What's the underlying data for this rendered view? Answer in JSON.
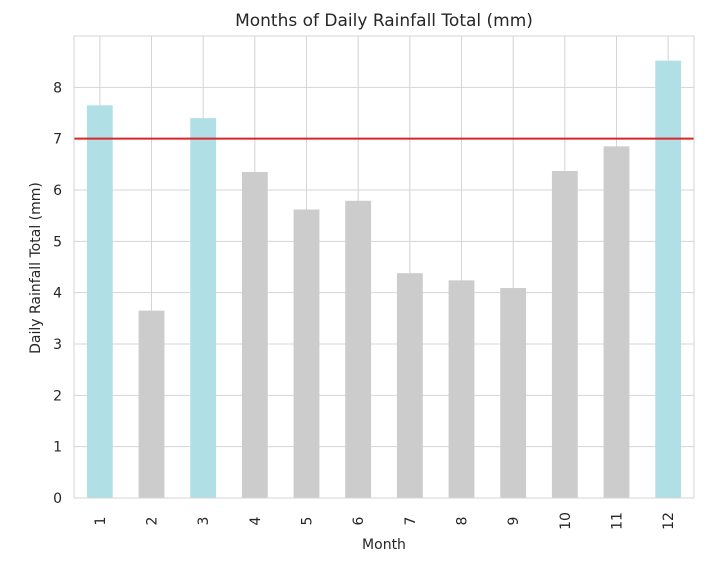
{
  "chart_data": {
    "type": "bar",
    "title": "Months of Daily Rainfall Total (mm)",
    "xlabel": "Month",
    "ylabel": "Daily Rainfall Total (mm)",
    "categories": [
      "1",
      "2",
      "3",
      "4",
      "5",
      "6",
      "7",
      "8",
      "9",
      "10",
      "11",
      "12"
    ],
    "values": [
      7.65,
      3.65,
      7.4,
      6.35,
      5.62,
      5.79,
      4.38,
      4.24,
      4.09,
      6.37,
      6.85,
      8.52
    ],
    "highlighted": [
      true,
      false,
      true,
      false,
      false,
      false,
      false,
      false,
      false,
      false,
      false,
      true
    ],
    "threshold": 7.0,
    "ylim": [
      0,
      9
    ],
    "yticks": [
      "0",
      "1",
      "2",
      "3",
      "4",
      "5",
      "6",
      "7",
      "8"
    ],
    "grid": true,
    "colors": {
      "highlight_bar": "#b0e0e6",
      "normal_bar": "#cccccc",
      "threshold_line": "#d62728",
      "grid": "#d4d4d4"
    }
  }
}
